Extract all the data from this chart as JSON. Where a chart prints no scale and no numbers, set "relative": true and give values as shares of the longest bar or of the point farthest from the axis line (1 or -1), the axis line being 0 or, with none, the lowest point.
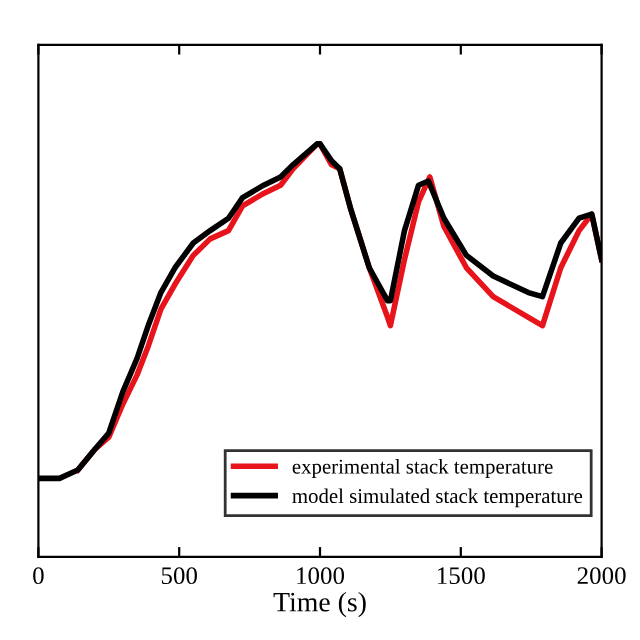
{
  "chart_data": {
    "type": "line",
    "xlabel": "Time (s)",
    "relative": true,
    "xlim": [
      0,
      2000
    ],
    "xticks": [
      0,
      500,
      1000,
      1500,
      2000
    ],
    "legend": "bottom right",
    "grid": false,
    "series": [
      {
        "name": "experimental stack temperature",
        "color": "#e8141c",
        "x": [
          140,
          200,
          250,
          300,
          350,
          390,
          435,
          485,
          550,
          610,
          675,
          725,
          800,
          860,
          905,
          990,
          1000,
          1040,
          1070,
          1110,
          1175,
          1240,
          1250,
          1300,
          1350,
          1390,
          1440,
          1520,
          1615,
          1740,
          1790,
          1855,
          1920,
          1965,
          2000
        ],
        "values": [
          0.21,
          0.26,
          0.29,
          0.37,
          0.44,
          0.51,
          0.6,
          0.66,
          0.73,
          0.77,
          0.79,
          0.85,
          0.88,
          0.9,
          0.94,
          1.0,
          1.0,
          0.95,
          0.94,
          0.84,
          0.7,
          0.58,
          0.56,
          0.72,
          0.86,
          0.92,
          0.8,
          0.7,
          0.63,
          0.58,
          0.56,
          0.7,
          0.79,
          0.83,
          0.72
        ]
      },
      {
        "name": "model simulated stack temperature",
        "color": "#000000",
        "x": [
          0,
          75,
          140,
          200,
          250,
          300,
          350,
          390,
          435,
          485,
          550,
          610,
          675,
          725,
          800,
          860,
          905,
          990,
          1000,
          1040,
          1070,
          1110,
          1175,
          1240,
          1250,
          1300,
          1350,
          1385,
          1440,
          1520,
          1615,
          1740,
          1790,
          1855,
          1920,
          1965,
          2000
        ],
        "values": [
          0.19,
          0.19,
          0.21,
          0.26,
          0.3,
          0.4,
          0.48,
          0.56,
          0.64,
          0.7,
          0.76,
          0.79,
          0.82,
          0.87,
          0.9,
          0.92,
          0.95,
          1.0,
          1.0,
          0.96,
          0.94,
          0.84,
          0.7,
          0.62,
          0.62,
          0.79,
          0.9,
          0.91,
          0.82,
          0.73,
          0.68,
          0.64,
          0.63,
          0.76,
          0.82,
          0.83,
          0.72
        ]
      }
    ]
  }
}
